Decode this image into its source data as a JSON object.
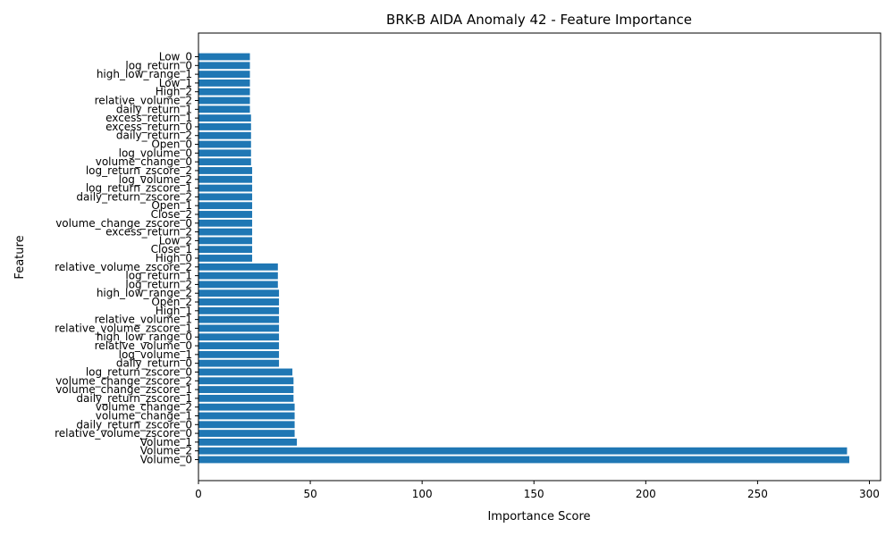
{
  "chart_data": {
    "type": "bar",
    "orientation": "horizontal",
    "title": "BRK-B AIDA Anomaly 42 - Feature Importance",
    "xlabel": "Importance Score",
    "ylabel": "Feature",
    "xlim": [
      0,
      305
    ],
    "xticks": [
      0,
      50,
      100,
      150,
      200,
      250,
      300
    ],
    "grid": false,
    "bar_color": "#1f77b4",
    "categories": [
      "Volume_0",
      "Volume_2",
      "Volume_1",
      "relative_volume_zscore_0",
      "daily_return_zscore_0",
      "volume_change_1",
      "volume_change_2",
      "daily_return_zscore_1",
      "volume_change_zscore_1",
      "volume_change_zscore_2",
      "log_return_zscore_0",
      "daily_return_0",
      "log_volume_1",
      "relative_volume_0",
      "high_low_range_0",
      "relative_volume_zscore_1",
      "relative_volume_1",
      "High_1",
      "Open_2",
      "high_low_range_2",
      "log_return_2",
      "log_return_1",
      "relative_volume_zscore_2",
      "High_0",
      "Close_1",
      "Low_2",
      "excess_return_2",
      "volume_change_zscore_0",
      "Close_2",
      "Open_1",
      "daily_return_zscore_2",
      "log_return_zscore_1",
      "log_volume_2",
      "log_return_zscore_2",
      "volume_change_0",
      "log_volume_0",
      "Open_0",
      "daily_return_2",
      "excess_return_0",
      "excess_return_1",
      "daily_return_1",
      "relative_volume_2",
      "High_2",
      "Low_1",
      "high_low_range_1",
      "log_return_0",
      "Low_0"
    ],
    "values": [
      291,
      290,
      44,
      43,
      43,
      43,
      43,
      42.5,
      42.5,
      42.5,
      42,
      36,
      36,
      36,
      36,
      36,
      36,
      36,
      36,
      36,
      35.5,
      35.5,
      35.5,
      24,
      24,
      24,
      24,
      24,
      24,
      24,
      24,
      24,
      24,
      24,
      23.5,
      23.5,
      23.5,
      23.5,
      23.5,
      23.5,
      23,
      23,
      23,
      23,
      23,
      23,
      23
    ]
  }
}
